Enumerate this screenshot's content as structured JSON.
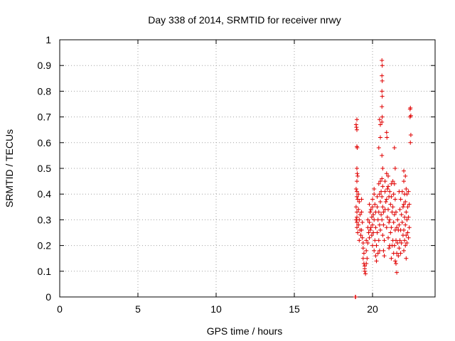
{
  "chart_data": {
    "type": "scatter",
    "title": "Day 338 of 2014, SRMTID for receiver nrwy",
    "xlabel": "GPS time / hours",
    "ylabel": "SRMTID / TECUs",
    "xlim": [
      0,
      24
    ],
    "ylim": [
      0,
      1
    ],
    "xticks": [
      0,
      5,
      10,
      15,
      20
    ],
    "xtick_labels": [
      "0",
      "5",
      "10",
      "15",
      "20"
    ],
    "yticks": [
      0,
      0.1,
      0.2,
      0.3,
      0.4,
      0.5,
      0.6,
      0.7,
      0.8,
      0.9,
      1
    ],
    "ytick_labels": [
      "0",
      "0.1",
      "0.2",
      "0.3",
      "0.4",
      "0.5",
      "0.6",
      "0.7",
      "0.8",
      "0.9",
      "1"
    ],
    "grid": true,
    "marker": "plus",
    "color": "#e00000",
    "series": [
      {
        "name": "SRMTID",
        "points": [
          [
            18.9,
            0.0
          ],
          [
            18.92,
            0.0
          ],
          [
            18.95,
            0.67
          ],
          [
            18.97,
            0.66
          ],
          [
            19.0,
            0.69
          ],
          [
            19.0,
            0.65
          ],
          [
            19.0,
            0.585
          ],
          [
            19.02,
            0.58
          ],
          [
            19.0,
            0.5
          ],
          [
            19.02,
            0.48
          ],
          [
            19.05,
            0.47
          ],
          [
            19.0,
            0.45
          ],
          [
            18.95,
            0.42
          ],
          [
            19.0,
            0.41
          ],
          [
            19.0,
            0.39
          ],
          [
            19.05,
            0.38
          ],
          [
            18.95,
            0.35
          ],
          [
            19.0,
            0.33
          ],
          [
            19.0,
            0.31
          ],
          [
            18.95,
            0.3
          ],
          [
            19.0,
            0.29
          ],
          [
            19.0,
            0.27
          ],
          [
            19.05,
            0.25
          ],
          [
            19.1,
            0.4
          ],
          [
            19.15,
            0.37
          ],
          [
            19.1,
            0.34
          ],
          [
            19.2,
            0.32
          ],
          [
            19.15,
            0.3
          ],
          [
            19.1,
            0.28
          ],
          [
            19.2,
            0.26
          ],
          [
            19.25,
            0.24
          ],
          [
            19.15,
            0.22
          ],
          [
            19.3,
            0.38
          ],
          [
            19.3,
            0.33
          ],
          [
            19.35,
            0.29
          ],
          [
            19.3,
            0.26
          ],
          [
            19.35,
            0.23
          ],
          [
            19.4,
            0.21
          ],
          [
            19.4,
            0.19
          ],
          [
            19.45,
            0.17
          ],
          [
            19.4,
            0.15
          ],
          [
            19.45,
            0.13
          ],
          [
            19.5,
            0.12
          ],
          [
            19.5,
            0.11
          ],
          [
            19.5,
            0.1
          ],
          [
            19.55,
            0.09
          ],
          [
            19.6,
            0.22
          ],
          [
            19.6,
            0.18
          ],
          [
            19.65,
            0.15
          ],
          [
            19.6,
            0.13
          ],
          [
            19.7,
            0.3
          ],
          [
            19.7,
            0.27
          ],
          [
            19.75,
            0.25
          ],
          [
            19.7,
            0.21
          ],
          [
            19.8,
            0.36
          ],
          [
            19.85,
            0.33
          ],
          [
            19.8,
            0.29
          ],
          [
            19.85,
            0.26
          ],
          [
            19.8,
            0.23
          ],
          [
            19.9,
            0.34
          ],
          [
            19.95,
            0.31
          ],
          [
            19.9,
            0.27
          ],
          [
            19.95,
            0.24
          ],
          [
            20.0,
            0.38
          ],
          [
            20.0,
            0.35
          ],
          [
            20.05,
            0.32
          ],
          [
            20.0,
            0.28
          ],
          [
            20.05,
            0.25
          ],
          [
            20.0,
            0.2
          ],
          [
            20.1,
            0.42
          ],
          [
            20.1,
            0.4
          ],
          [
            20.15,
            0.36
          ],
          [
            20.1,
            0.3
          ],
          [
            20.15,
            0.22
          ],
          [
            20.1,
            0.18
          ],
          [
            20.2,
            0.33
          ],
          [
            20.2,
            0.27
          ],
          [
            20.25,
            0.2
          ],
          [
            20.2,
            0.16
          ],
          [
            20.25,
            0.14
          ],
          [
            20.3,
            0.39
          ],
          [
            20.3,
            0.35
          ],
          [
            20.35,
            0.3
          ],
          [
            20.3,
            0.25
          ],
          [
            20.35,
            0.17
          ],
          [
            20.4,
            0.58
          ],
          [
            20.4,
            0.44
          ],
          [
            20.45,
            0.4
          ],
          [
            20.4,
            0.33
          ],
          [
            20.45,
            0.28
          ],
          [
            20.4,
            0.22
          ],
          [
            20.45,
            0.18
          ],
          [
            20.45,
            0.69
          ],
          [
            20.5,
            0.67
          ],
          [
            20.5,
            0.62
          ],
          [
            20.5,
            0.45
          ],
          [
            20.55,
            0.41
          ],
          [
            20.5,
            0.37
          ],
          [
            20.55,
            0.32
          ],
          [
            20.5,
            0.26
          ],
          [
            20.6,
            0.92
          ],
          [
            20.62,
            0.9
          ],
          [
            20.6,
            0.86
          ],
          [
            20.62,
            0.84
          ],
          [
            20.6,
            0.8
          ],
          [
            20.62,
            0.78
          ],
          [
            20.6,
            0.74
          ],
          [
            20.62,
            0.7
          ],
          [
            20.6,
            0.68
          ],
          [
            20.6,
            0.55
          ],
          [
            20.65,
            0.5
          ],
          [
            20.6,
            0.46
          ],
          [
            20.65,
            0.43
          ],
          [
            20.6,
            0.39
          ],
          [
            20.65,
            0.35
          ],
          [
            20.6,
            0.3
          ],
          [
            20.65,
            0.24
          ],
          [
            20.7,
            0.33
          ],
          [
            20.7,
            0.28
          ],
          [
            20.75,
            0.22
          ],
          [
            20.7,
            0.18
          ],
          [
            20.75,
            0.16
          ],
          [
            20.8,
            0.45
          ],
          [
            20.8,
            0.41
          ],
          [
            20.85,
            0.37
          ],
          [
            20.8,
            0.34
          ],
          [
            20.9,
            0.64
          ],
          [
            20.92,
            0.62
          ],
          [
            20.9,
            0.48
          ],
          [
            20.95,
            0.42
          ],
          [
            20.9,
            0.38
          ],
          [
            20.95,
            0.31
          ],
          [
            20.9,
            0.27
          ],
          [
            21.0,
            0.47
          ],
          [
            21.0,
            0.43
          ],
          [
            21.05,
            0.39
          ],
          [
            21.0,
            0.34
          ],
          [
            21.05,
            0.29
          ],
          [
            21.0,
            0.23
          ],
          [
            21.05,
            0.19
          ],
          [
            21.1,
            0.41
          ],
          [
            21.15,
            0.36
          ],
          [
            21.1,
            0.3
          ],
          [
            21.15,
            0.25
          ],
          [
            21.1,
            0.2
          ],
          [
            21.2,
            0.44
          ],
          [
            21.2,
            0.39
          ],
          [
            21.25,
            0.33
          ],
          [
            21.2,
            0.27
          ],
          [
            21.25,
            0.2
          ],
          [
            21.2,
            0.15
          ],
          [
            21.3,
            0.45
          ],
          [
            21.35,
            0.4
          ],
          [
            21.3,
            0.35
          ],
          [
            21.35,
            0.29
          ],
          [
            21.3,
            0.22
          ],
          [
            21.35,
            0.17
          ],
          [
            21.4,
            0.58
          ],
          [
            21.45,
            0.5
          ],
          [
            21.4,
            0.44
          ],
          [
            21.45,
            0.38
          ],
          [
            21.4,
            0.32
          ],
          [
            21.45,
            0.26
          ],
          [
            21.4,
            0.2
          ],
          [
            21.45,
            0.14
          ],
          [
            21.5,
            0.33
          ],
          [
            21.55,
            0.27
          ],
          [
            21.5,
            0.22
          ],
          [
            21.55,
            0.17
          ],
          [
            21.5,
            0.13
          ],
          [
            21.55,
            0.095
          ],
          [
            21.6,
            0.3
          ],
          [
            21.65,
            0.26
          ],
          [
            21.6,
            0.21
          ],
          [
            21.65,
            0.16
          ],
          [
            21.7,
            0.41
          ],
          [
            21.75,
            0.34
          ],
          [
            21.7,
            0.28
          ],
          [
            21.75,
            0.22
          ],
          [
            21.7,
            0.19
          ],
          [
            21.8,
            0.38
          ],
          [
            21.85,
            0.32
          ],
          [
            21.8,
            0.26
          ],
          [
            21.85,
            0.21
          ],
          [
            21.8,
            0.17
          ],
          [
            21.9,
            0.41
          ],
          [
            21.95,
            0.35
          ],
          [
            21.9,
            0.29
          ],
          [
            21.95,
            0.24
          ],
          [
            22.0,
            0.49
          ],
          [
            22.0,
            0.45
          ],
          [
            22.05,
            0.4
          ],
          [
            22.0,
            0.36
          ],
          [
            22.05,
            0.31
          ],
          [
            22.0,
            0.26
          ],
          [
            22.05,
            0.22
          ],
          [
            22.0,
            0.18
          ],
          [
            22.1,
            0.47
          ],
          [
            22.15,
            0.42
          ],
          [
            22.1,
            0.37
          ],
          [
            22.15,
            0.33
          ],
          [
            22.1,
            0.28
          ],
          [
            22.15,
            0.24
          ],
          [
            22.1,
            0.2
          ],
          [
            22.15,
            0.15
          ],
          [
            22.2,
            0.4
          ],
          [
            22.25,
            0.35
          ],
          [
            22.2,
            0.3
          ],
          [
            22.25,
            0.25
          ],
          [
            22.2,
            0.21
          ],
          [
            22.3,
            0.41
          ],
          [
            22.35,
            0.36
          ],
          [
            22.3,
            0.31
          ],
          [
            22.35,
            0.27
          ],
          [
            22.3,
            0.23
          ],
          [
            22.4,
            0.73
          ],
          [
            22.42,
            0.735
          ],
          [
            22.4,
            0.7
          ],
          [
            22.45,
            0.705
          ],
          [
            22.45,
            0.63
          ],
          [
            22.42,
            0.6
          ]
        ]
      }
    ]
  }
}
